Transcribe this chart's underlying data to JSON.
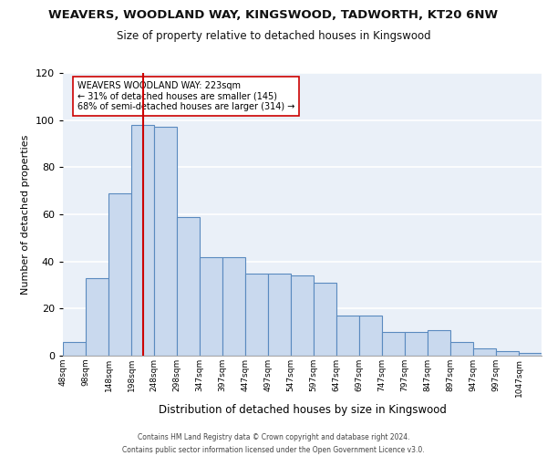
{
  "title": "WEAVERS, WOODLAND WAY, KINGSWOOD, TADWORTH, KT20 6NW",
  "subtitle": "Size of property relative to detached houses in Kingswood",
  "xlabel": "Distribution of detached houses by size in Kingswood",
  "ylabel": "Number of detached properties",
  "bar_labels": [
    "48sqm",
    "98sqm",
    "148sqm",
    "198sqm",
    "248sqm",
    "298sqm",
    "347sqm",
    "397sqm",
    "447sqm",
    "497sqm",
    "547sqm",
    "597sqm",
    "647sqm",
    "697sqm",
    "747sqm",
    "797sqm",
    "847sqm",
    "897sqm",
    "947sqm",
    "997sqm",
    "1047sqm"
  ],
  "bar_values": [
    6,
    33,
    69,
    98,
    97,
    59,
    42,
    42,
    35,
    35,
    34,
    31,
    17,
    17,
    10,
    10,
    11,
    6,
    3,
    2,
    1
  ],
  "bar_color": "#c9d9ee",
  "bar_edge_color": "#5a8abf",
  "background_color": "#eaf0f8",
  "grid_color": "#ffffff",
  "ylim": [
    0,
    120
  ],
  "yticks": [
    0,
    20,
    40,
    60,
    80,
    100,
    120
  ],
  "property_line_x": 3.5,
  "property_line_color": "#cc0000",
  "annotation_text": "WEAVERS WOODLAND WAY: 223sqm\n← 31% of detached houses are smaller (145)\n68% of semi-detached houses are larger (314) →",
  "footer_line1": "Contains HM Land Registry data © Crown copyright and database right 2024.",
  "footer_line2": "Contains public sector information licensed under the Open Government Licence v3.0."
}
